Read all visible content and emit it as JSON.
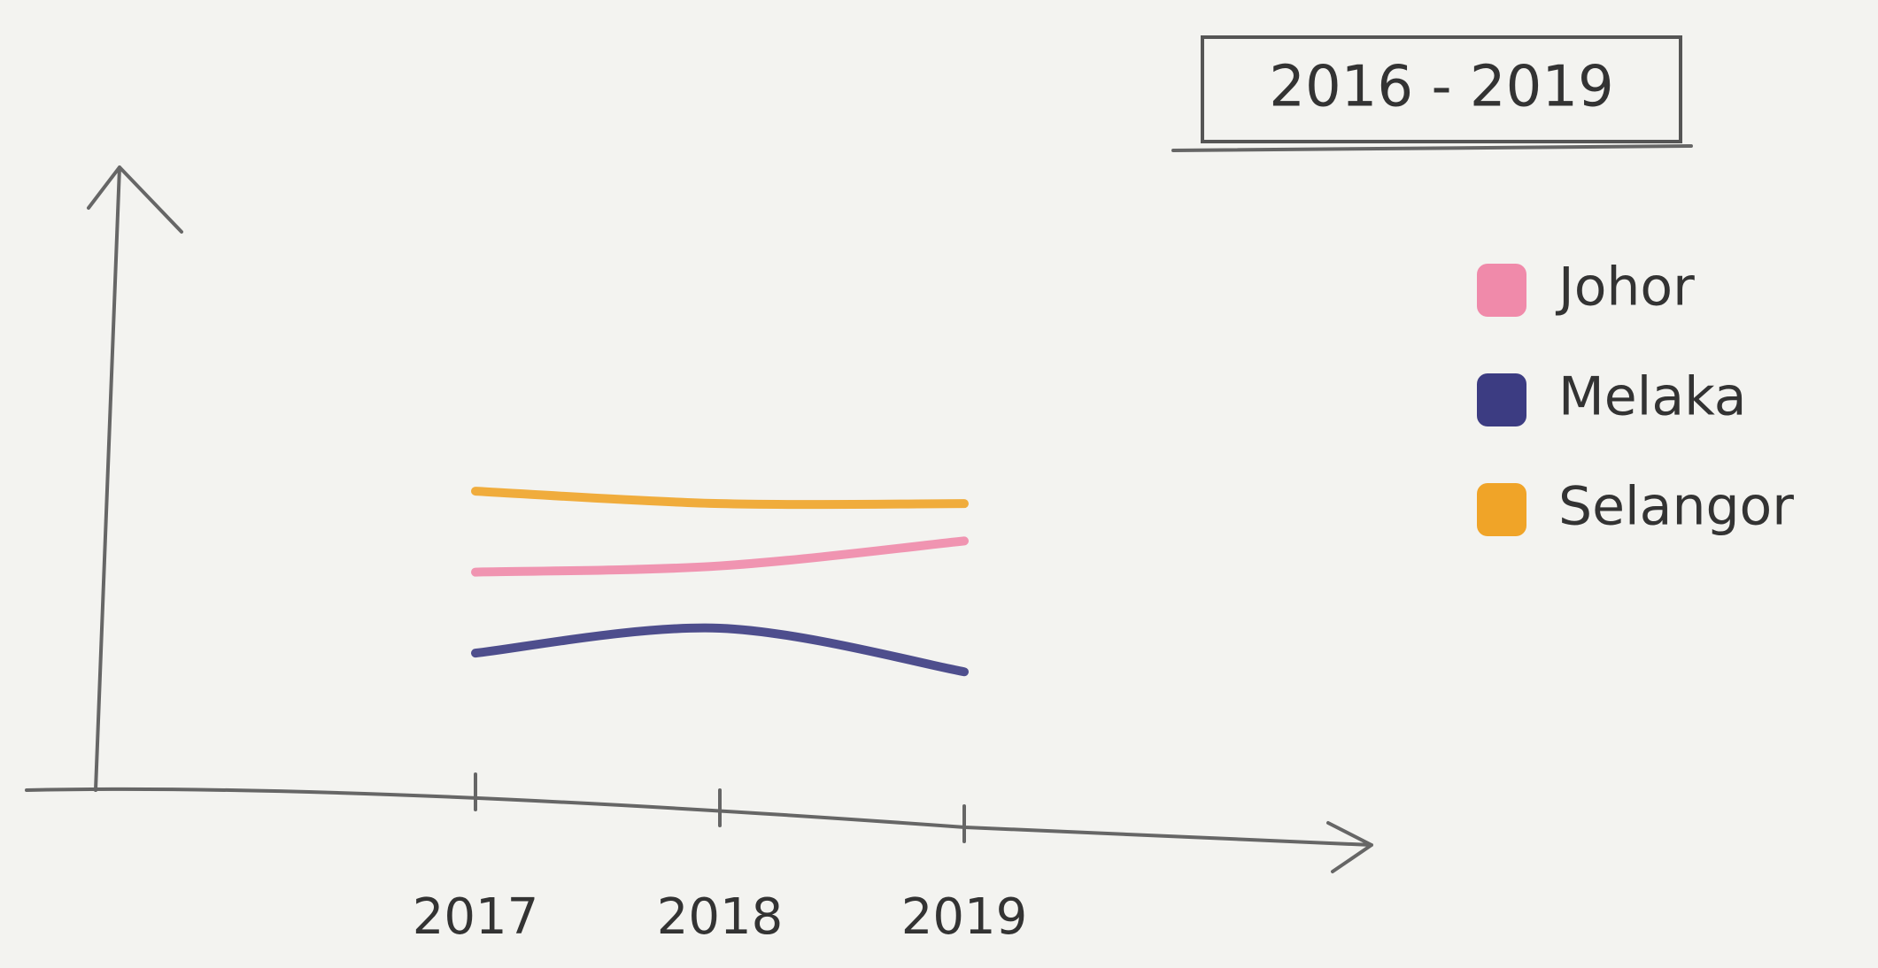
{
  "chart_data": {
    "type": "line",
    "title": "2016 - 2019",
    "categories": [
      "2017",
      "2018",
      "2019"
    ],
    "ylim": [
      0,
      100
    ],
    "series": [
      {
        "name": "Johor",
        "color": "#f08aaa",
        "values": [
          35,
          36,
          40
        ]
      },
      {
        "name": "Melaka",
        "color": "#3c3c82",
        "values": [
          22,
          26,
          19
        ]
      },
      {
        "name": "Selangor",
        "color": "#f0a428",
        "values": [
          48,
          46,
          46
        ]
      }
    ],
    "legend": "right"
  }
}
